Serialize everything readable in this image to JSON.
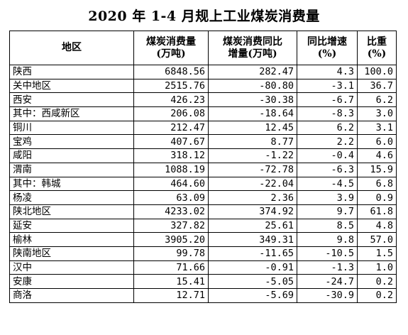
{
  "title": "2020 年 1-4 月规上工业煤炭消费量",
  "headers": {
    "region": "地区",
    "consumption_l1": "煤炭消费量",
    "consumption_l2": "(万吨)",
    "increase_l1": "煤炭消费同比",
    "increase_l2": "增量(万吨)",
    "growth_l1": "同比增速",
    "growth_l2": "(%)",
    "share_l1": "比重",
    "share_l2": "(%)"
  },
  "rows": [
    {
      "region": "陕西",
      "consumption": "6848.56",
      "increase": "282.47",
      "growth": "4.3",
      "share": "100.0"
    },
    {
      "region": "关中地区",
      "consumption": "2515.76",
      "increase": "-80.80",
      "growth": "-3.1",
      "share": "36.7"
    },
    {
      "region": "西安",
      "consumption": "426.23",
      "increase": "-30.38",
      "growth": "-6.7",
      "share": "6.2"
    },
    {
      "region": "其中：西咸新区",
      "consumption": "206.08",
      "increase": "-18.64",
      "growth": "-8.3",
      "share": "3.0"
    },
    {
      "region": "铜川",
      "consumption": "212.47",
      "increase": "12.45",
      "growth": "6.2",
      "share": "3.1"
    },
    {
      "region": "宝鸡",
      "consumption": "407.67",
      "increase": "8.77",
      "growth": "2.2",
      "share": "6.0"
    },
    {
      "region": "咸阳",
      "consumption": "318.12",
      "increase": "-1.22",
      "growth": "-0.4",
      "share": "4.6"
    },
    {
      "region": "渭南",
      "consumption": "1088.19",
      "increase": "-72.78",
      "growth": "-6.3",
      "share": "15.9"
    },
    {
      "region": "其中：韩城",
      "consumption": "464.60",
      "increase": "-22.04",
      "growth": "-4.5",
      "share": "6.8"
    },
    {
      "region": "杨凌",
      "consumption": "63.09",
      "increase": "2.36",
      "growth": "3.9",
      "share": "0.9"
    },
    {
      "region": "陕北地区",
      "consumption": "4233.02",
      "increase": "374.92",
      "growth": "9.7",
      "share": "61.8"
    },
    {
      "region": "延安",
      "consumption": "327.82",
      "increase": "25.61",
      "growth": "8.5",
      "share": "4.8"
    },
    {
      "region": "榆林",
      "consumption": "3905.20",
      "increase": "349.31",
      "growth": "9.8",
      "share": "57.0"
    },
    {
      "region": "陕南地区",
      "consumption": "99.78",
      "increase": "-11.65",
      "growth": "-10.5",
      "share": "1.5"
    },
    {
      "region": "汉中",
      "consumption": "71.66",
      "increase": "-0.91",
      "growth": "-1.3",
      "share": "1.0"
    },
    {
      "region": "安康",
      "consumption": "15.41",
      "increase": "-5.05",
      "growth": "-24.7",
      "share": "0.2"
    },
    {
      "region": "商洛",
      "consumption": "12.71",
      "increase": "-5.69",
      "growth": "-30.9",
      "share": "0.2"
    }
  ]
}
